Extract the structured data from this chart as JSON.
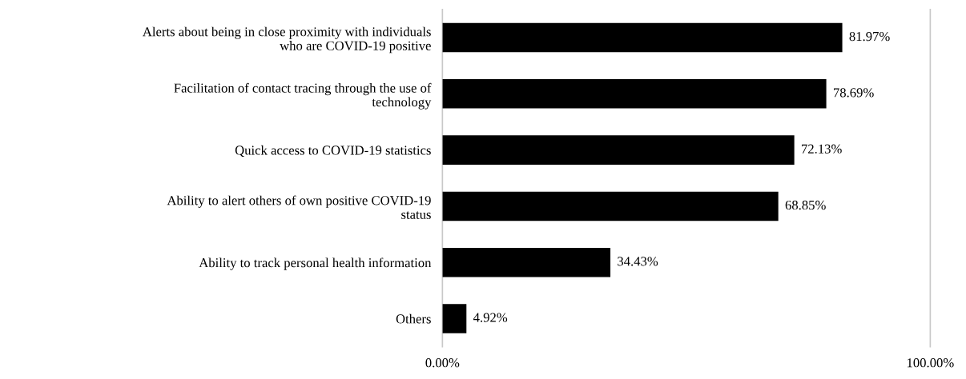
{
  "chart_data": {
    "type": "bar",
    "orientation": "horizontal",
    "categories": [
      "Alerts about being in close proximity with individuals\nwho are COVID-19 positive",
      "Facilitation of contact tracing through the use of\ntechnology",
      "Quick access to COVID-19 statistics",
      "Ability to alert others of own positive COVID-19\nstatus",
      "Ability to track personal health information",
      "Others"
    ],
    "values": [
      81.97,
      78.69,
      72.13,
      68.85,
      34.43,
      4.92
    ],
    "value_labels": [
      "81.97%",
      "78.69%",
      "72.13%",
      "68.85%",
      "34.43%",
      "4.92%"
    ],
    "color": "#000000",
    "xlim": [
      0,
      100
    ],
    "xticks": [
      {
        "value": 0,
        "label": "0.00%"
      },
      {
        "value": 100,
        "label": "100.00%"
      }
    ],
    "legend": false
  }
}
